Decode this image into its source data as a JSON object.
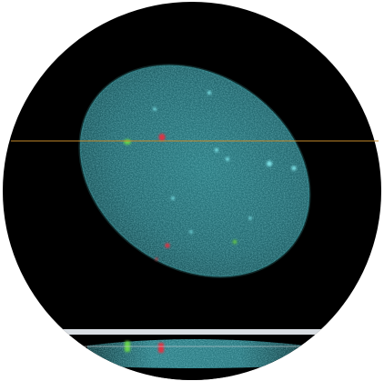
{
  "image": {
    "subject": "confocal-nucleus-micrograph",
    "colors": {
      "background": "#ffffff",
      "field": "#000000",
      "nucleus_core": "#2a7f86",
      "nucleus_edge": "#1e5f66",
      "nucleus_speckle": "#7fe5ea",
      "green_signal": "#67d34c",
      "red_signal": "#e03343",
      "crosshair": "#c58a2a",
      "orthogonal_bar": "#d8dde2",
      "orthogonal_band": "#2e7f87"
    }
  }
}
